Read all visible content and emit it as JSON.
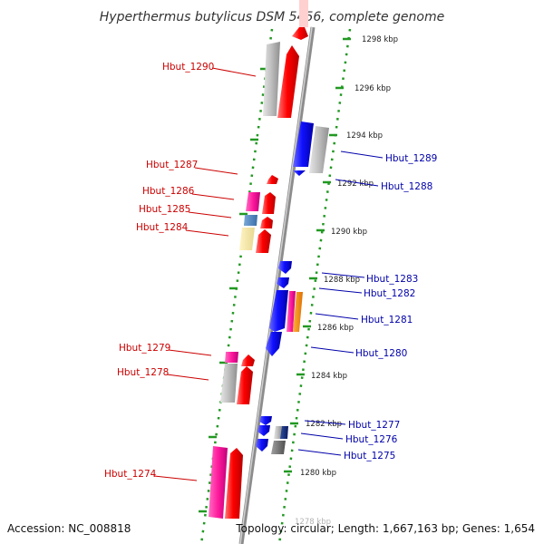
{
  "title": "Hyperthermus butylicus DSM 5456, complete genome",
  "footer": {
    "accession": "Accession: NC_008818",
    "topology": "Topology: circular; Length: 1,667,163 bp; Genes: 1,654"
  },
  "colors": {
    "forward_label": "#cc0000",
    "reverse_label": "#0000aa",
    "backbone": "#999999",
    "ticks": "#229922"
  },
  "kbp_labels": [
    "1298 kbp",
    "1296 kbp",
    "1294 kbp",
    "1292 kbp",
    "1290 kbp",
    "1288 kbp",
    "1286 kbp",
    "1284 kbp",
    "1282 kbp",
    "1280 kbp",
    "1278 kbp"
  ],
  "forward_genes": [
    {
      "label": "Hbut_1290"
    },
    {
      "label": "Hbut_1287"
    },
    {
      "label": "Hbut_1286"
    },
    {
      "label": "Hbut_1285"
    },
    {
      "label": "Hbut_1284"
    },
    {
      "label": "Hbut_1279"
    },
    {
      "label": "Hbut_1278"
    },
    {
      "label": "Hbut_1274"
    }
  ],
  "reverse_genes": [
    {
      "label": "Hbut_1289"
    },
    {
      "label": "Hbut_1288"
    },
    {
      "label": "Hbut_1283"
    },
    {
      "label": "Hbut_1282"
    },
    {
      "label": "Hbut_1281"
    },
    {
      "label": "Hbut_1280"
    },
    {
      "label": "Hbut_1277"
    },
    {
      "label": "Hbut_1276"
    },
    {
      "label": "Hbut_1275"
    }
  ]
}
